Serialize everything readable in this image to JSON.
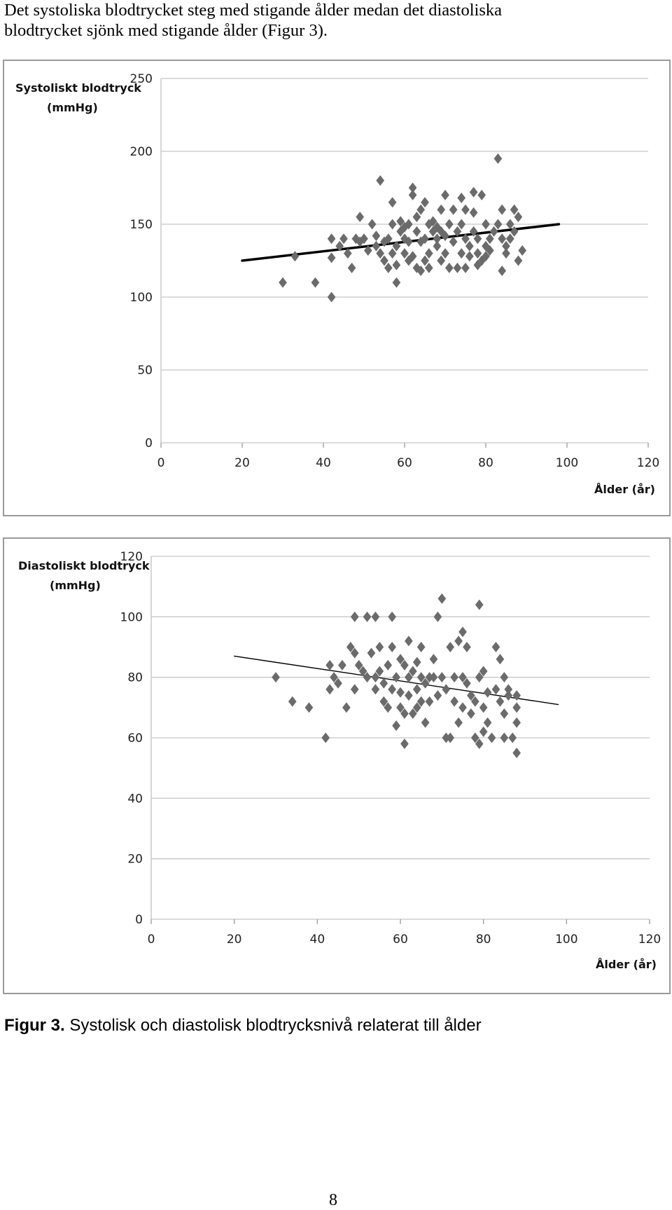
{
  "intro": {
    "line1": "Det systoliska blodtrycket steg med stigande ålder medan det diastoliska",
    "line2": "blodtrycket sjönk med stigande ålder (Figur 3)."
  },
  "caption": {
    "label": "Figur 3.",
    "text": " Systolisk och diastolisk blodtrycksnivå relaterat till ålder"
  },
  "page_number": "8",
  "colors": {
    "marker": "#6b6b6b",
    "trend": "#000000",
    "grid": "#c8c8c8",
    "frame": "#9a9a9a"
  },
  "chart_data": [
    {
      "type": "scatter",
      "ylabel_line1": "Systoliskt blodtryck",
      "ylabel_line2": "(mmHg)",
      "xlabel": "Ålder (år)",
      "xlim": [
        0,
        120
      ],
      "ylim": [
        0,
        250
      ],
      "x_ticks": [
        0,
        20,
        40,
        60,
        80,
        100,
        120
      ],
      "y_ticks": [
        0,
        50,
        100,
        150,
        200,
        250
      ],
      "grid": true,
      "trendline": {
        "x": [
          20,
          98
        ],
        "y": [
          125,
          150
        ]
      },
      "points": [
        [
          30,
          110
        ],
        [
          33,
          128
        ],
        [
          38,
          110
        ],
        [
          42,
          100
        ],
        [
          42,
          140
        ],
        [
          42,
          127
        ],
        [
          44,
          135
        ],
        [
          45,
          140
        ],
        [
          46,
          130
        ],
        [
          47,
          120
        ],
        [
          48,
          140
        ],
        [
          49,
          138
        ],
        [
          49,
          155
        ],
        [
          50,
          140
        ],
        [
          51,
          132
        ],
        [
          52,
          150
        ],
        [
          53,
          135
        ],
        [
          53,
          142
        ],
        [
          54,
          130
        ],
        [
          54,
          180
        ],
        [
          55,
          138
        ],
        [
          55,
          125
        ],
        [
          56,
          140
        ],
        [
          56,
          120
        ],
        [
          57,
          130
        ],
        [
          57,
          165
        ],
        [
          57,
          150
        ],
        [
          58,
          110
        ],
        [
          58,
          135
        ],
        [
          58,
          122
        ],
        [
          59,
          145
        ],
        [
          59,
          152
        ],
        [
          60,
          140
        ],
        [
          60,
          130
        ],
        [
          60,
          148
        ],
        [
          61,
          125
        ],
        [
          61,
          138
        ],
        [
          61,
          150
        ],
        [
          62,
          175
        ],
        [
          62,
          170
        ],
        [
          62,
          128
        ],
        [
          63,
          120
        ],
        [
          63,
          145
        ],
        [
          63,
          155
        ],
        [
          64,
          160
        ],
        [
          64,
          138
        ],
        [
          64,
          118
        ],
        [
          65,
          125
        ],
        [
          65,
          165
        ],
        [
          65,
          140
        ],
        [
          66,
          150
        ],
        [
          66,
          130
        ],
        [
          66,
          120
        ],
        [
          67,
          145
        ],
        [
          67,
          152
        ],
        [
          68,
          135
        ],
        [
          68,
          140
        ],
        [
          68,
          148
        ],
        [
          69,
          125
        ],
        [
          69,
          160
        ],
        [
          69,
          145
        ],
        [
          70,
          170
        ],
        [
          70,
          130
        ],
        [
          70,
          142
        ],
        [
          71,
          120
        ],
        [
          71,
          150
        ],
        [
          72,
          160
        ],
        [
          72,
          138
        ],
        [
          73,
          120
        ],
        [
          73,
          145
        ],
        [
          74,
          168
        ],
        [
          74,
          130
        ],
        [
          74,
          150
        ],
        [
          75,
          120
        ],
        [
          75,
          140
        ],
        [
          75,
          160
        ],
        [
          76,
          135
        ],
        [
          76,
          128
        ],
        [
          77,
          172
        ],
        [
          77,
          145
        ],
        [
          77,
          158
        ],
        [
          78,
          130
        ],
        [
          78,
          122
        ],
        [
          78,
          140
        ],
        [
          79,
          170
        ],
        [
          79,
          125
        ],
        [
          80,
          150
        ],
        [
          80,
          135
        ],
        [
          80,
          128
        ],
        [
          81,
          140
        ],
        [
          81,
          132
        ],
        [
          82,
          145
        ],
        [
          83,
          195
        ],
        [
          83,
          150
        ],
        [
          84,
          160
        ],
        [
          84,
          140
        ],
        [
          84,
          118
        ],
        [
          85,
          130
        ],
        [
          85,
          135
        ],
        [
          86,
          150
        ],
        [
          86,
          140
        ],
        [
          87,
          160
        ],
        [
          87,
          145
        ],
        [
          88,
          125
        ],
        [
          88,
          155
        ],
        [
          89,
          132
        ]
      ]
    },
    {
      "type": "scatter",
      "ylabel_line1": "Diastoliskt blodtryck",
      "ylabel_line2": "(mmHg)",
      "xlabel": "Ålder (år)",
      "xlim": [
        0,
        120
      ],
      "ylim": [
        0,
        120
      ],
      "x_ticks": [
        0,
        20,
        40,
        60,
        80,
        100,
        120
      ],
      "y_ticks": [
        0,
        20,
        40,
        60,
        80,
        100,
        120
      ],
      "grid": true,
      "trendline": {
        "x": [
          20,
          98
        ],
        "y": [
          87,
          71
        ]
      },
      "points": [
        [
          30,
          80
        ],
        [
          34,
          72
        ],
        [
          38,
          70
        ],
        [
          42,
          60
        ],
        [
          43,
          84
        ],
        [
          43,
          76
        ],
        [
          44,
          80
        ],
        [
          45,
          78
        ],
        [
          46,
          84
        ],
        [
          47,
          70
        ],
        [
          48,
          90
        ],
        [
          49,
          100
        ],
        [
          49,
          88
        ],
        [
          49,
          76
        ],
        [
          50,
          84
        ],
        [
          51,
          82
        ],
        [
          52,
          100
        ],
        [
          52,
          80
        ],
        [
          53,
          88
        ],
        [
          54,
          100
        ],
        [
          54,
          76
        ],
        [
          54,
          80
        ],
        [
          55,
          82
        ],
        [
          55,
          90
        ],
        [
          56,
          78
        ],
        [
          56,
          72
        ],
        [
          57,
          84
        ],
        [
          57,
          70
        ],
        [
          58,
          100
        ],
        [
          58,
          90
        ],
        [
          58,
          76
        ],
        [
          59,
          64
        ],
        [
          59,
          80
        ],
        [
          60,
          86
        ],
        [
          60,
          70
        ],
        [
          60,
          75
        ],
        [
          61,
          58
        ],
        [
          61,
          68
        ],
        [
          61,
          84
        ],
        [
          62,
          92
        ],
        [
          62,
          80
        ],
        [
          62,
          74
        ],
        [
          63,
          68
        ],
        [
          63,
          82
        ],
        [
          64,
          85
        ],
        [
          64,
          70
        ],
        [
          64,
          76
        ],
        [
          65,
          90
        ],
        [
          65,
          72
        ],
        [
          65,
          80
        ],
        [
          66,
          78
        ],
        [
          66,
          65
        ],
        [
          67,
          80
        ],
        [
          67,
          72
        ],
        [
          68,
          86
        ],
        [
          68,
          80
        ],
        [
          69,
          100
        ],
        [
          69,
          74
        ],
        [
          70,
          106
        ],
        [
          70,
          80
        ],
        [
          71,
          60
        ],
        [
          71,
          76
        ],
        [
          72,
          90
        ],
        [
          72,
          60
        ],
        [
          73,
          72
        ],
        [
          73,
          80
        ],
        [
          74,
          92
        ],
        [
          74,
          65
        ],
        [
          75,
          95
        ],
        [
          75,
          70
        ],
        [
          75,
          80
        ],
        [
          76,
          90
        ],
        [
          76,
          78
        ],
        [
          77,
          74
        ],
        [
          77,
          68
        ],
        [
          78,
          72
        ],
        [
          78,
          60
        ],
        [
          79,
          104
        ],
        [
          79,
          80
        ],
        [
          79,
          58
        ],
        [
          80,
          70
        ],
        [
          80,
          62
        ],
        [
          80,
          82
        ],
        [
          81,
          65
        ],
        [
          81,
          75
        ],
        [
          82,
          60
        ],
        [
          83,
          90
        ],
        [
          83,
          76
        ],
        [
          84,
          86
        ],
        [
          84,
          72
        ],
        [
          85,
          80
        ],
        [
          85,
          68
        ],
        [
          85,
          60
        ],
        [
          86,
          76
        ],
        [
          86,
          74
        ],
        [
          87,
          60
        ],
        [
          88,
          74
        ],
        [
          88,
          65
        ],
        [
          88,
          55
        ],
        [
          88,
          70
        ]
      ]
    }
  ]
}
